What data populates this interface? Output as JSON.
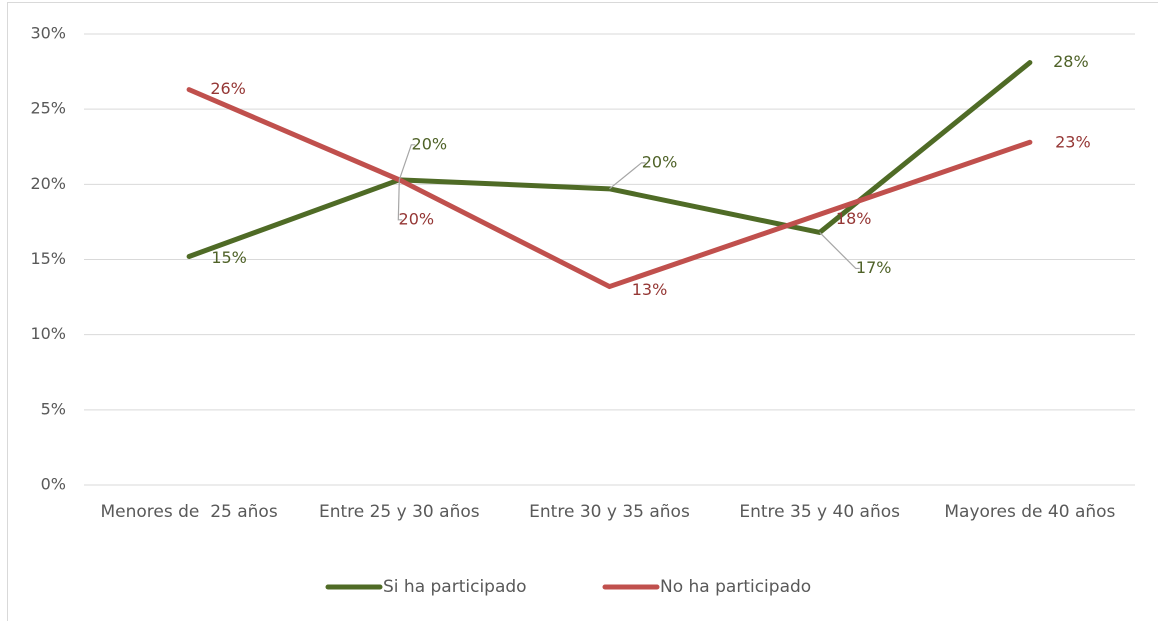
{
  "chart_data": {
    "type": "line",
    "categories": [
      "Menores de  25 años",
      "Entre 25 y 30 años",
      "Entre 30 y 35 años",
      "Entre 35 y 40 años",
      "Mayores de 40 años"
    ],
    "series": [
      {
        "name": "Si ha participado",
        "color": "#4f6b26",
        "label_color": "#4f6228",
        "values": [
          15.2,
          20.3,
          19.7,
          16.8,
          28.1
        ],
        "value_labels": [
          "15%",
          "20%",
          "20%",
          "17%",
          "28%"
        ]
      },
      {
        "name": "No ha participado",
        "color": "#c0504d",
        "label_color": "#953735",
        "values": [
          26.3,
          20.3,
          13.2,
          18.0,
          22.8
        ],
        "value_labels": [
          "26%",
          "20%",
          "13%",
          "18%",
          "23%"
        ]
      }
    ],
    "ylim": [
      0,
      30
    ],
    "yticks": [
      {
        "value": 0,
        "label": "0%"
      },
      {
        "value": 5,
        "label": "5%"
      },
      {
        "value": 10,
        "label": "10%"
      },
      {
        "value": 15,
        "label": "15%"
      },
      {
        "value": 20,
        "label": "20%"
      },
      {
        "value": 25,
        "label": "25%"
      },
      {
        "value": 30,
        "label": "30%"
      }
    ],
    "grid": true,
    "legend": "bottom"
  }
}
